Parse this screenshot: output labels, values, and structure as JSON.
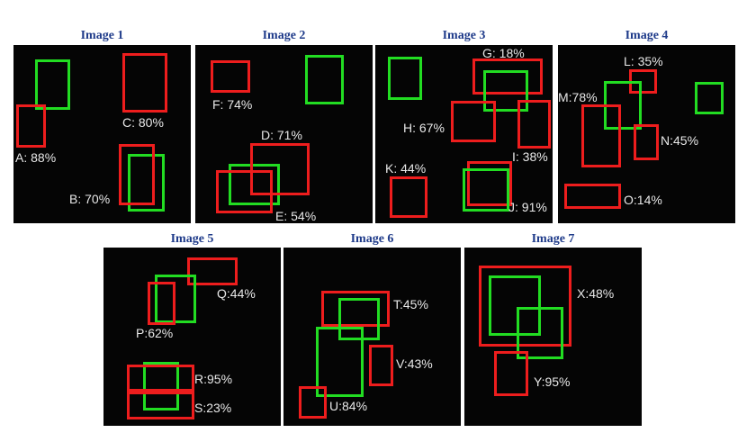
{
  "colors": {
    "background": "#ffffff",
    "panel_bg": "#050505",
    "title": "#1f3b8a",
    "label": "#e8e8e8",
    "ground_truth_box": "#22dd22",
    "predicted_box": "#ee1d1d"
  },
  "panels": [
    {
      "title": "Image 1",
      "labels": [
        {
          "text": "A: 88%"
        },
        {
          "text": "B: 70%"
        },
        {
          "text": "C: 80%"
        }
      ]
    },
    {
      "title": "Image 2",
      "labels": [
        {
          "text": "F: 74%"
        },
        {
          "text": "D: 71%"
        },
        {
          "text": "E: 54%"
        }
      ]
    },
    {
      "title": "Image 3",
      "labels": [
        {
          "text": "G: 18%"
        },
        {
          "text": "H: 67%"
        },
        {
          "text": "I: 38%"
        },
        {
          "text": "K: 44%"
        },
        {
          "text": "J: 91%"
        }
      ]
    },
    {
      "title": "Image 4",
      "labels": [
        {
          "text": "L: 35%"
        },
        {
          "text": "M:78%"
        },
        {
          "text": "N:45%"
        },
        {
          "text": "O:14%"
        }
      ]
    },
    {
      "title": "Image 5",
      "labels": [
        {
          "text": "Q:44%"
        },
        {
          "text": "P:62%"
        },
        {
          "text": "R:95%"
        },
        {
          "text": "S:23%"
        }
      ]
    },
    {
      "title": "Image 6",
      "labels": [
        {
          "text": "T:45%"
        },
        {
          "text": "V:43%"
        },
        {
          "text": "U:84%"
        }
      ]
    },
    {
      "title": "Image 7",
      "labels": [
        {
          "text": "X:48%"
        },
        {
          "text": "Y:95%"
        }
      ]
    }
  ]
}
